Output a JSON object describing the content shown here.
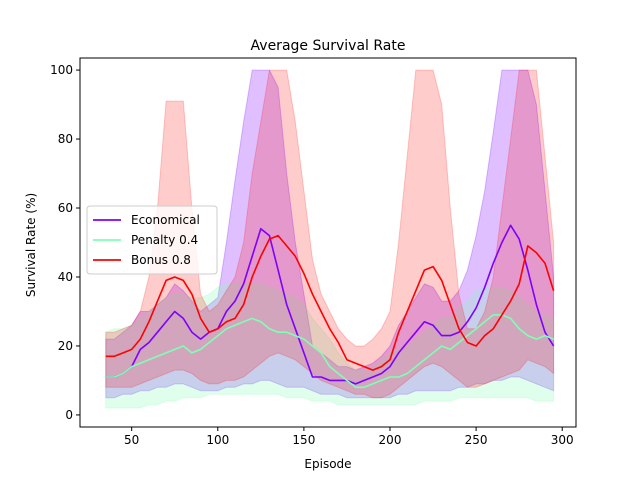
{
  "chart_data": {
    "type": "line",
    "title": "Average Survival Rate",
    "xlabel": "Episode",
    "ylabel": "Survival Rate (%)",
    "xlim": [
      20,
      308
    ],
    "ylim": [
      -3.5,
      103.5
    ],
    "xticks": [
      50,
      100,
      150,
      200,
      250,
      300
    ],
    "yticks": [
      0,
      20,
      40,
      60,
      80,
      100
    ],
    "legend_position": "center-left",
    "grid": false,
    "series": [
      {
        "name": "Economical",
        "color": "#7f00ff",
        "band_color": "#7f00ff",
        "band_opacity": 0.25,
        "x": [
          35,
          40,
          45,
          50,
          55,
          60,
          65,
          70,
          75,
          80,
          85,
          90,
          95,
          100,
          105,
          110,
          115,
          120,
          125,
          130,
          135,
          140,
          145,
          150,
          155,
          160,
          165,
          170,
          175,
          180,
          185,
          190,
          195,
          200,
          205,
          210,
          215,
          220,
          225,
          230,
          235,
          240,
          245,
          250,
          255,
          260,
          265,
          270,
          275,
          280,
          285,
          290,
          295
        ],
        "y": [
          11,
          11,
          12,
          14,
          19,
          21,
          24,
          27,
          30,
          28,
          24,
          22,
          24,
          25,
          30,
          33,
          38,
          46,
          54,
          52,
          42,
          32,
          25,
          18,
          11,
          11,
          10,
          10,
          10,
          9,
          10,
          11,
          12,
          14,
          18,
          21,
          24,
          27,
          26,
          23,
          23,
          24,
          27,
          31,
          37,
          44,
          50,
          55,
          51,
          42,
          32,
          24,
          20
        ],
        "lower": [
          5,
          5,
          6,
          6,
          7,
          7,
          8,
          8,
          9,
          9,
          8,
          7,
          7,
          7,
          8,
          8,
          9,
          9,
          10,
          10,
          9,
          8,
          8,
          8,
          7,
          6,
          6,
          6,
          5,
          5,
          5,
          5,
          5,
          5,
          6,
          6,
          7,
          7,
          7,
          7,
          7,
          8,
          8,
          9,
          9,
          10,
          10,
          11,
          11,
          10,
          9,
          8,
          7
        ],
        "upper": [
          22,
          22,
          24,
          26,
          30,
          30,
          32,
          34,
          38,
          36,
          33,
          30,
          32,
          34,
          50,
          68,
          85,
          100,
          100,
          100,
          95,
          70,
          50,
          35,
          20,
          18,
          16,
          14,
          14,
          13,
          14,
          15,
          17,
          20,
          26,
          30,
          34,
          38,
          37,
          33,
          33,
          36,
          42,
          52,
          65,
          82,
          100,
          100,
          100,
          100,
          90,
          65,
          40
        ]
      },
      {
        "name": "Penalty 0.4",
        "color": "#80ffb4",
        "band_color": "#80ffb4",
        "band_opacity": 0.25,
        "x": [
          35,
          40,
          45,
          50,
          55,
          60,
          65,
          70,
          75,
          80,
          85,
          90,
          95,
          100,
          105,
          110,
          115,
          120,
          125,
          130,
          135,
          140,
          145,
          150,
          155,
          160,
          165,
          170,
          175,
          180,
          185,
          190,
          195,
          200,
          205,
          210,
          215,
          220,
          225,
          230,
          235,
          240,
          245,
          250,
          255,
          260,
          265,
          270,
          275,
          280,
          285,
          290,
          295
        ],
        "y": [
          11,
          11,
          12,
          14,
          15,
          16,
          17,
          18,
          19,
          20,
          18,
          19,
          21,
          23,
          25,
          26,
          27,
          28,
          27,
          25,
          24,
          24,
          23,
          22,
          20,
          18,
          14,
          12,
          10,
          8,
          8,
          9,
          10,
          11,
          11,
          12,
          14,
          16,
          18,
          20,
          19,
          21,
          23,
          25,
          27,
          29,
          29,
          28,
          25,
          23,
          22,
          23,
          22
        ],
        "lower": [
          2,
          2,
          2,
          2,
          2,
          3,
          3,
          4,
          4,
          5,
          5,
          5,
          6,
          6,
          6,
          6,
          6,
          6,
          6,
          6,
          6,
          5,
          5,
          5,
          4,
          4,
          4,
          3,
          3,
          3,
          3,
          3,
          3,
          3,
          3,
          3,
          3,
          4,
          4,
          4,
          4,
          5,
          5,
          5,
          5,
          5,
          5,
          5,
          5,
          5,
          4,
          4,
          4
        ],
        "upper": [
          24,
          25,
          25,
          26,
          28,
          30,
          32,
          34,
          35,
          35,
          34,
          34,
          35,
          37,
          38,
          38,
          38,
          38,
          38,
          37,
          36,
          35,
          34,
          32,
          28,
          25,
          22,
          18,
          15,
          13,
          13,
          14,
          16,
          18,
          19,
          20,
          22,
          24,
          26,
          28,
          28,
          31,
          33,
          36,
          37,
          37,
          37,
          36,
          34,
          32,
          30,
          29,
          28
        ]
      },
      {
        "name": "Bonus 0.8",
        "color": "#ff0000",
        "band_color": "#ff0000",
        "band_opacity": 0.2,
        "x": [
          35,
          40,
          45,
          50,
          55,
          60,
          65,
          70,
          75,
          80,
          85,
          90,
          95,
          100,
          105,
          110,
          115,
          120,
          125,
          130,
          135,
          140,
          145,
          150,
          155,
          160,
          165,
          170,
          175,
          180,
          185,
          190,
          195,
          200,
          205,
          210,
          215,
          220,
          225,
          230,
          235,
          240,
          245,
          250,
          255,
          260,
          265,
          270,
          275,
          280,
          285,
          290,
          295
        ],
        "y": [
          17,
          17,
          18,
          19,
          22,
          27,
          33,
          39,
          40,
          39,
          35,
          28,
          24,
          25,
          27,
          28,
          32,
          40,
          46,
          51,
          52,
          49,
          46,
          41,
          35,
          30,
          25,
          21,
          16,
          15,
          14,
          13,
          14,
          16,
          24,
          30,
          36,
          42,
          43,
          39,
          32,
          25,
          21,
          20,
          23,
          25,
          29,
          33,
          38,
          49,
          47,
          44,
          36
        ],
        "lower": [
          8,
          8,
          8,
          8,
          9,
          10,
          11,
          12,
          13,
          13,
          12,
          10,
          9,
          9,
          10,
          10,
          11,
          13,
          15,
          17,
          18,
          17,
          16,
          14,
          12,
          10,
          9,
          8,
          7,
          6,
          6,
          5,
          5,
          6,
          8,
          10,
          12,
          14,
          15,
          14,
          12,
          10,
          8,
          8,
          9,
          10,
          11,
          12,
          13,
          16,
          15,
          14,
          12
        ],
        "upper": [
          24,
          24,
          25,
          26,
          30,
          40,
          60,
          91,
          91,
          91,
          60,
          35,
          30,
          32,
          36,
          40,
          50,
          70,
          85,
          100,
          100,
          100,
          85,
          65,
          45,
          35,
          30,
          25,
          22,
          20,
          20,
          22,
          25,
          30,
          50,
          75,
          100,
          100,
          100,
          90,
          60,
          35,
          25,
          25,
          30,
          40,
          60,
          80,
          100,
          100,
          100,
          75,
          50
        ]
      }
    ]
  }
}
